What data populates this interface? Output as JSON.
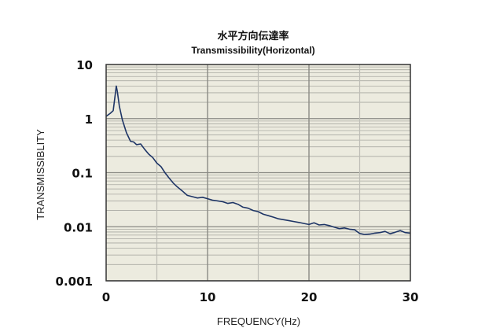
{
  "chart_data": {
    "type": "line",
    "title": "水平方向伝達率",
    "subtitle": "Transmissibility(Horizontal)",
    "xlabel": "FREQUENCY(Hz)",
    "ylabel": "TRANSMISSIBLITY",
    "xlim": [
      0,
      30
    ],
    "ylim": [
      0.001,
      10
    ],
    "yscale": "log",
    "grid": true,
    "xticks": [
      "0",
      "10",
      "20",
      "30"
    ],
    "yticks": [
      "10",
      "1",
      "0.1",
      "0.01",
      "0.001"
    ],
    "colors": {
      "line": "#1e3566",
      "plot_bg": "#ecebdf",
      "grid_major": "#8a8a84",
      "grid_minor": "#a9a9a2"
    },
    "series": [
      {
        "x": [
          0,
          0.4,
          0.7,
          0.9,
          1.0,
          1.1,
          1.3,
          1.6,
          2.0,
          2.4,
          2.7,
          3.0,
          3.4,
          3.8,
          4.2,
          4.6,
          5.0,
          5.4,
          5.8,
          6.2,
          6.6,
          7.0,
          7.5,
          8.0,
          8.5,
          9.0,
          9.5,
          10.0,
          10.5,
          11.0,
          11.5,
          12.0,
          12.5,
          13.0,
          13.5,
          14.0,
          14.5,
          15.0,
          15.5,
          16.0,
          16.5,
          17.0,
          17.5,
          18.0,
          18.5,
          19.0,
          19.5,
          20.0,
          20.5,
          21.0,
          21.5,
          22.0,
          22.5,
          23.0,
          23.5,
          24.0,
          24.5,
          25.0,
          25.5,
          26.0,
          26.5,
          27.0,
          27.5,
          28.0,
          28.5,
          29.0,
          29.5,
          30.0
        ],
        "y": [
          1.1,
          1.25,
          1.4,
          2.8,
          4.0,
          3.2,
          1.7,
          0.95,
          0.55,
          0.38,
          0.37,
          0.33,
          0.34,
          0.27,
          0.22,
          0.19,
          0.15,
          0.13,
          0.1,
          0.08,
          0.065,
          0.055,
          0.046,
          0.038,
          0.036,
          0.034,
          0.035,
          0.033,
          0.031,
          0.03,
          0.029,
          0.027,
          0.028,
          0.026,
          0.023,
          0.022,
          0.02,
          0.019,
          0.017,
          0.016,
          0.015,
          0.014,
          0.0135,
          0.013,
          0.0125,
          0.012,
          0.0115,
          0.011,
          0.0118,
          0.0108,
          0.011,
          0.0105,
          0.0098,
          0.0092,
          0.0095,
          0.009,
          0.0088,
          0.0075,
          0.0072,
          0.0073,
          0.0076,
          0.0078,
          0.0082,
          0.0074,
          0.0079,
          0.0085,
          0.0078,
          0.0076
        ]
      }
    ]
  }
}
